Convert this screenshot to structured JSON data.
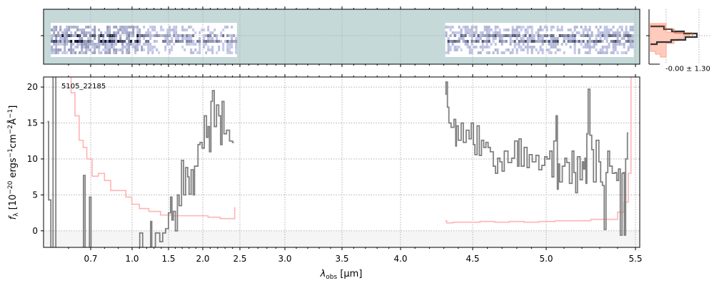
{
  "chart_data": {
    "type": "line",
    "object_id": "5105_22185",
    "xlabel": "λ_obs [μm]",
    "xlabel_main": "λ",
    "xlabel_sub": "obs",
    "xlabel_unit": " [μm]",
    "ylabel": "f_λ [10^-20 ergs^-1 cm^-2 Å^-1]",
    "ylabel_parts": {
      "f": "f",
      "sub": "λ",
      "a": " [10",
      "e1": "−20",
      "b": " ergs",
      "e2": "−1",
      "c": "cm",
      "e3": "−2",
      "d": "Å",
      "e4": "−1",
      "e": "]"
    },
    "xlim": [
      0.49,
      5.52
    ],
    "ylim": [
      -2.3,
      21.4
    ],
    "grid": true,
    "x_ticks": [
      "0.7",
      "1.0",
      "1.5",
      "2.0",
      "2.5",
      "3.0",
      "3.5",
      "4.0",
      "4.5",
      "5.0",
      "5.5"
    ],
    "y_ticks": [
      "0",
      "5",
      "10",
      "15",
      "20"
    ],
    "colors": {
      "flux": "#808080",
      "error": "#ffb3b3",
      "panel2d_bg": "#c5d9d9",
      "negative_band": "#f5f5f5"
    },
    "series": [
      {
        "name": "flux",
        "segments": [
          [
            [
              0.505,
              15.2
            ],
            [
              0.515,
              4.3
            ],
            [
              0.525,
              -3
            ],
            [
              0.535,
              22
            ],
            [
              0.55,
              -3
            ]
          ],
          [
            [
              0.665,
              -3
            ],
            [
              0.67,
              7.7
            ],
            [
              0.68,
              -3
            ]
          ],
          [
            [
              0.692,
              -3
            ],
            [
              0.697,
              4.7
            ],
            [
              0.71,
              -3
            ]
          ],
          [
            [
              1.1,
              -3
            ],
            [
              1.11,
              -0.3
            ],
            [
              1.14,
              -0.3
            ],
            [
              1.15,
              -3
            ]
          ],
          [
            [
              1.25,
              -3
            ],
            [
              1.26,
              1.3
            ],
            [
              1.28,
              -3
            ],
            [
              1.36,
              -0.3
            ],
            [
              1.4,
              -1.5
            ],
            [
              1.44,
              -0.3
            ],
            [
              1.48,
              0.3
            ],
            [
              1.52,
              2.5
            ],
            [
              1.54,
              4.7
            ],
            [
              1.56,
              1.5
            ],
            [
              1.58,
              2.7
            ],
            [
              1.62,
              0
            ],
            [
              1.64,
              5
            ],
            [
              1.67,
              3.5
            ],
            [
              1.71,
              9.8
            ],
            [
              1.73,
              5
            ],
            [
              1.77,
              8.8
            ],
            [
              1.79,
              7.5
            ],
            [
              1.81,
              5.1
            ],
            [
              1.85,
              8.5
            ],
            [
              1.87,
              5
            ],
            [
              1.89,
              9
            ],
            [
              1.92,
              9
            ],
            [
              1.94,
              12
            ],
            [
              1.98,
              12.3
            ],
            [
              2.0,
              11.5
            ],
            [
              2.04,
              16
            ],
            [
              2.06,
              13
            ],
            [
              2.08,
              14.5
            ],
            [
              2.1,
              11
            ],
            [
              2.12,
              18
            ],
            [
              2.14,
              19.5
            ],
            [
              2.17,
              14.5
            ],
            [
              2.2,
              17.5
            ],
            [
              2.23,
              16
            ],
            [
              2.25,
              12
            ],
            [
              2.27,
              18
            ],
            [
              2.3,
              13.5
            ],
            [
              2.34,
              14
            ],
            [
              2.38,
              12.5
            ],
            [
              2.42,
              12.3
            ]
          ],
          [
            [
              4.31,
              19
            ],
            [
              4.32,
              20.7
            ],
            [
              4.33,
              17.2
            ],
            [
              4.34,
              15
            ],
            [
              4.36,
              14.4
            ],
            [
              4.38,
              15.5
            ],
            [
              4.385,
              11.8
            ],
            [
              4.39,
              14.6
            ],
            [
              4.41,
              12.6
            ],
            [
              4.43,
              15
            ],
            [
              4.44,
              12.3
            ],
            [
              4.47,
              14
            ],
            [
              4.48,
              12.8
            ],
            [
              4.5,
              15
            ],
            [
              4.51,
              12
            ],
            [
              4.52,
              10.6
            ],
            [
              4.54,
              14.6
            ],
            [
              4.55,
              10.5
            ],
            [
              4.57,
              12.6
            ],
            [
              4.58,
              11.6
            ],
            [
              4.6,
              12.3
            ],
            [
              4.61,
              11.6
            ],
            [
              4.63,
              11
            ],
            [
              4.65,
              9
            ],
            [
              4.66,
              8
            ],
            [
              4.68,
              10.1
            ],
            [
              4.69,
              9.6
            ],
            [
              4.71,
              8.3
            ],
            [
              4.72,
              11.1
            ],
            [
              4.76,
              9.5
            ],
            [
              4.77,
              10.1
            ],
            [
              4.8,
              12.5
            ],
            [
              4.81,
              9
            ],
            [
              4.82,
              12.8
            ],
            [
              4.84,
              9
            ],
            [
              4.86,
              11.6
            ],
            [
              4.88,
              8.8
            ],
            [
              4.89,
              10.6
            ],
            [
              4.92,
              9.6
            ],
            [
              4.94,
              10.5
            ],
            [
              4.96,
              8.5
            ],
            [
              4.98,
              9.1
            ],
            [
              5.0,
              10.3
            ],
            [
              5.01,
              10
            ],
            [
              5.03,
              11.1
            ],
            [
              5.035,
              7.5
            ],
            [
              5.05,
              12.5
            ],
            [
              5.06,
              16
            ],
            [
              5.065,
              5.8
            ],
            [
              5.07,
              9.3
            ],
            [
              5.08,
              6.8
            ],
            [
              5.1,
              9
            ],
            [
              5.11,
              10.1
            ],
            [
              5.12,
              9.5
            ],
            [
              5.14,
              6.6
            ],
            [
              5.15,
              11.1
            ],
            [
              5.16,
              8.1
            ],
            [
              5.17,
              5.3
            ],
            [
              5.18,
              10.3
            ],
            [
              5.2,
              7.1
            ],
            [
              5.205,
              9.6
            ],
            [
              5.215,
              8.6
            ],
            [
              5.22,
              10.1
            ],
            [
              5.225,
              6.6
            ],
            [
              5.23,
              13.5
            ],
            [
              5.24,
              19.7
            ],
            [
              5.25,
              13.3
            ],
            [
              5.26,
              11.3
            ],
            [
              5.27,
              6.8
            ],
            [
              5.29,
              12.6
            ],
            [
              5.3,
              9.6
            ],
            [
              5.31,
              6.8
            ],
            [
              5.32,
              6.3
            ],
            [
              5.33,
              0.2
            ],
            [
              5.34,
              8.1
            ],
            [
              5.35,
              11.1
            ],
            [
              5.36,
              9
            ],
            [
              5.38,
              8
            ],
            [
              5.39,
              8.1
            ],
            [
              5.4,
              7
            ],
            [
              5.41,
              8.6
            ],
            [
              5.42,
              -0.6
            ],
            [
              5.43,
              8
            ],
            [
              5.435,
              8.1
            ],
            [
              5.44,
              -0.6
            ],
            [
              5.45,
              10
            ],
            [
              5.46,
              13.6
            ]
          ]
        ]
      },
      {
        "name": "error",
        "segments": [
          [
            [
              0.6,
              22
            ],
            [
              0.623,
              19.2
            ],
            [
              0.635,
              16
            ],
            [
              0.661,
              12.6
            ],
            [
              0.671,
              11.6
            ],
            [
              0.694,
              10
            ],
            [
              0.73,
              7.6
            ],
            [
              0.78,
              8
            ],
            [
              0.82,
              7
            ],
            [
              0.87,
              5.6
            ],
            [
              0.94,
              5.6
            ],
            [
              0.97,
              4.7
            ],
            [
              1.05,
              3.7
            ],
            [
              1.15,
              3.1
            ],
            [
              1.31,
              2.7
            ],
            [
              1.47,
              2.2
            ],
            [
              1.65,
              2.1
            ],
            [
              1.82,
              2.1
            ],
            [
              1.99,
              2.1
            ],
            [
              2.15,
              1.9
            ],
            [
              2.32,
              1.7
            ],
            [
              2.42,
              1.7
            ],
            [
              2.44,
              3.2
            ]
          ],
          [
            [
              4.31,
              1.4
            ],
            [
              4.33,
              1.1
            ],
            [
              4.4,
              1.2
            ],
            [
              4.5,
              1.2
            ],
            [
              4.6,
              1.3
            ],
            [
              4.7,
              1.2
            ],
            [
              4.8,
              1.3
            ],
            [
              4.9,
              1.2
            ],
            [
              5.0,
              1.3
            ],
            [
              5.1,
              1.4
            ],
            [
              5.2,
              1.4
            ],
            [
              5.3,
              1.6
            ],
            [
              5.38,
              1.6
            ],
            [
              5.42,
              2.6
            ],
            [
              5.45,
              4.0
            ],
            [
              5.47,
              8
            ],
            [
              5.48,
              22
            ]
          ]
        ]
      }
    ]
  },
  "side_histogram": {
    "label": "-0.00 ± 1.30"
  }
}
